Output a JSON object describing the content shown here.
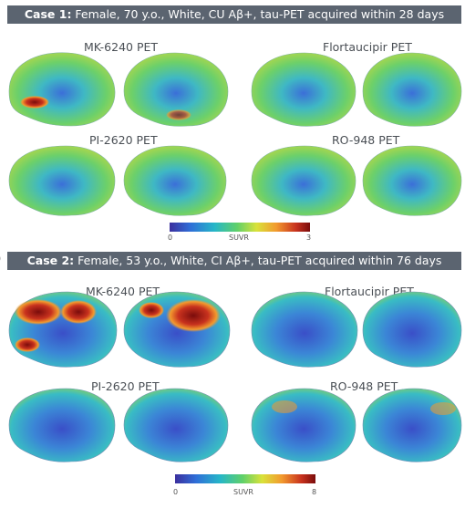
{
  "case1": {
    "title_bold": "Case 1:",
    "title_rest": " Female, 70 y.o., White, CU Aβ+, tau-PET acquired within 28 days",
    "labels": [
      "MK-6240 PET",
      "Flortaucipir PET",
      "PI-2620 PET",
      "RO-948 PET"
    ],
    "colorbar": {
      "min": "0",
      "label": "SUVR",
      "max": "3"
    }
  },
  "case2": {
    "title_bold": "Case 2:",
    "title_rest": " Female, 53 y.o., White, CI Aβ+, tau-PET acquired within 76 days",
    "labels": [
      "MK-6240 PET",
      "Flortaucipir PET",
      "PI-2620 PET",
      "RO-948 PET"
    ],
    "colorbar": {
      "min": "0",
      "label": "SUVR",
      "max": "8"
    }
  },
  "colormap": [
    "#3b2f9e",
    "#2f6fd8",
    "#26b6c8",
    "#5fd06a",
    "#d9e23a",
    "#f29a2e",
    "#c8321e",
    "#7a0c0c"
  ],
  "brain_fill_case1": "#5fc985",
  "brain_fill_case2": "#3e86d6"
}
